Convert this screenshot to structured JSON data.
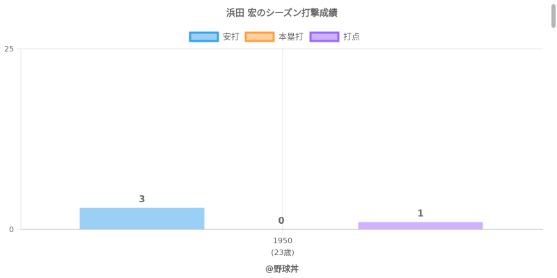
{
  "chart_data": {
    "type": "bar",
    "title": "浜田 宏のシーズン打撃成績",
    "categories": [
      "1950"
    ],
    "category_sublabels": [
      "(23歳)"
    ],
    "series": [
      {
        "name": "安打",
        "values": [
          3
        ],
        "color": "#36a2eb"
      },
      {
        "name": "本塁打",
        "values": [
          0
        ],
        "color": "#ff9f40"
      },
      {
        "name": "打点",
        "values": [
          1
        ],
        "color": "#9966ff"
      }
    ],
    "ylim": [
      0,
      25
    ],
    "yticks": [
      "0",
      "25"
    ],
    "grid": true,
    "legend": "top-center",
    "credit": "@野球丼"
  }
}
